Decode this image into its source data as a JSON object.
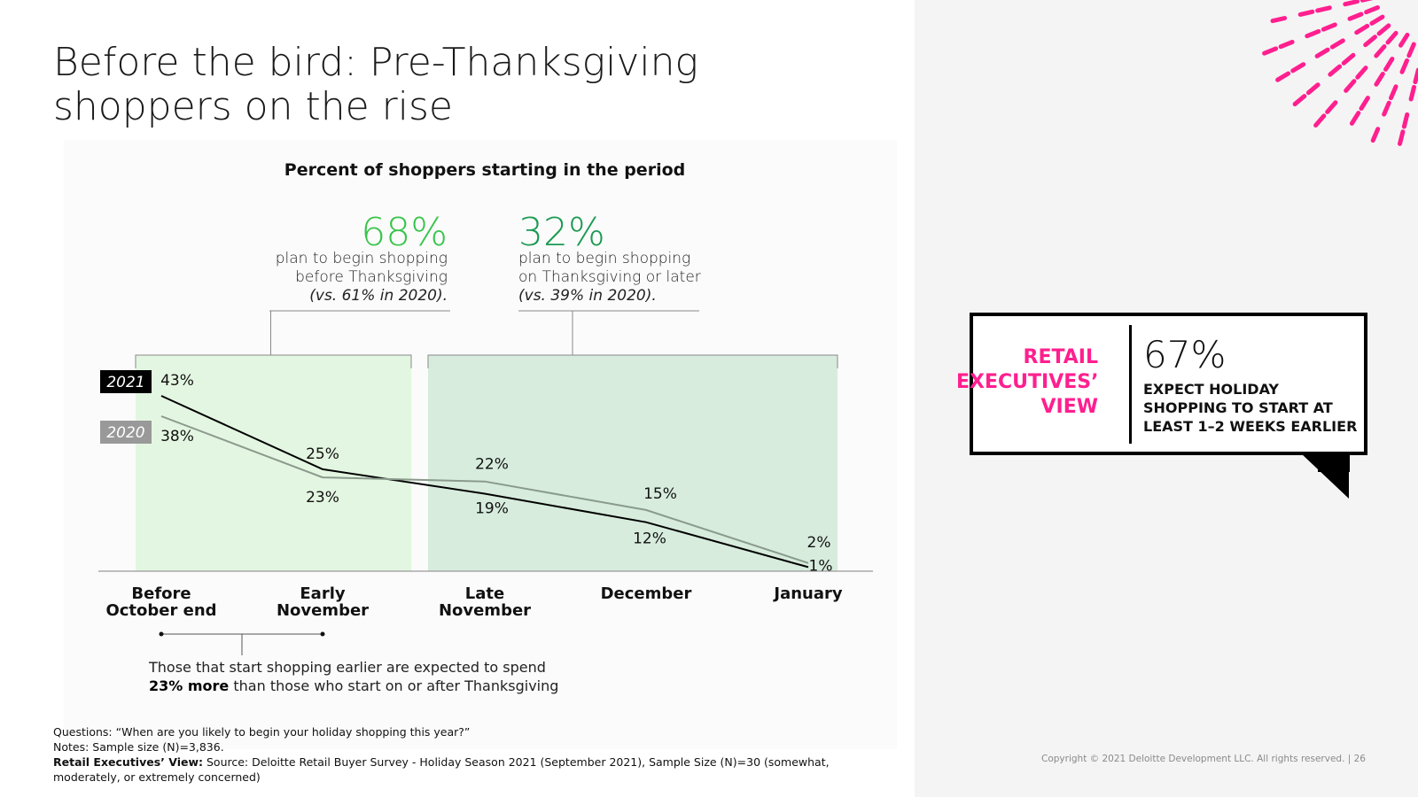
{
  "title": "Before the bird: Pre-Thanksgiving shoppers on the rise",
  "chart_data": {
    "type": "line",
    "title": "Percent of shoppers starting in the period",
    "categories": [
      "Before October end",
      "Early November",
      "Late November",
      "December",
      "January"
    ],
    "series": [
      {
        "name": "2021",
        "values": [
          43,
          25,
          19,
          12,
          1
        ],
        "labels": [
          "43%",
          "25%",
          "19%",
          "12%",
          "1%"
        ],
        "color": "#000000"
      },
      {
        "name": "2020",
        "values": [
          38,
          23,
          22,
          15,
          2
        ],
        "labels": [
          "38%",
          "23%",
          "22%",
          "15%",
          "2%"
        ],
        "color": "#8a9a8c"
      }
    ],
    "ylim": [
      0,
      50
    ],
    "grid": false,
    "regions": [
      {
        "from": "Before October end",
        "to": "Early November",
        "value": "68%",
        "text": [
          "plan to begin shopping",
          "before Thanksgiving"
        ],
        "note": "(vs. 61% in 2020).",
        "color": "#38c44a",
        "fill": "#e3f6e1"
      },
      {
        "from": "Late November",
        "to": "January",
        "value": "32%",
        "text": [
          "plan to begin shopping",
          "on Thanksgiving or later"
        ],
        "note": "(vs. 39% in 2020).",
        "color": "#1b9a52",
        "fill": "#d7ecdd"
      }
    ]
  },
  "bottom_note": {
    "line1": "Those that start shopping earlier are expected to spend",
    "bold": "23% more",
    "rest": " than those who start on or after Thanksgiving"
  },
  "callout": {
    "label": "RETAIL EXECUTIVES’ VIEW",
    "value": "67%",
    "text": "EXPECT HOLIDAY SHOPPING TO START AT LEAST 1–2 WEEKS EARLIER",
    "label_color": "#ff1f8f"
  },
  "footnotes": {
    "questions": "Questions: “When are you likely to begin your holiday shopping this year?”",
    "notes": "Notes: Sample size (N)=3,836.",
    "retail_label": "Retail Executives’ View:",
    "retail_text": " Source: Deloitte Retail Buyer Survey - Holiday Season 2021 (September 2021), Sample Size (N)=30 (somewhat, moderately, or extremely concerned)"
  },
  "copyright": "Copyright © 2021 Deloitte Development LLC. All rights reserved.   |    26",
  "colors": {
    "accent": "#ff1f8f"
  }
}
